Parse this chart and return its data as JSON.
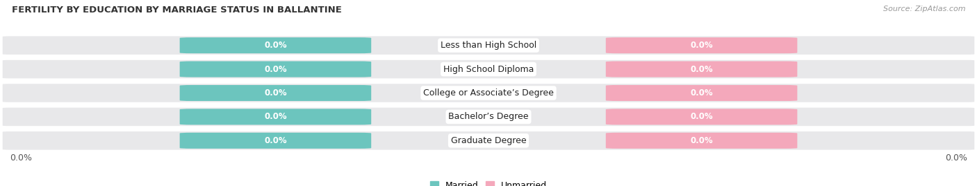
{
  "title": "FERTILITY BY EDUCATION BY MARRIAGE STATUS IN BALLANTINE",
  "source": "Source: ZipAtlas.com",
  "categories": [
    "Less than High School",
    "High School Diploma",
    "College or Associate’s Degree",
    "Bachelor’s Degree",
    "Graduate Degree"
  ],
  "married_values": [
    0.0,
    0.0,
    0.0,
    0.0,
    0.0
  ],
  "unmarried_values": [
    0.0,
    0.0,
    0.0,
    0.0,
    0.0
  ],
  "married_color": "#6cc5be",
  "unmarried_color": "#f4a8bb",
  "bar_bg_color": "#e8e8ea",
  "x_left_label": "0.0%",
  "x_right_label": "0.0%",
  "legend_married": "Married",
  "legend_unmarried": "Unmarried",
  "figsize": [
    14.06,
    2.69
  ],
  "dpi": 100,
  "title_fontsize": 9.5,
  "label_fontsize": 9,
  "tick_fontsize": 9,
  "source_fontsize": 8,
  "category_fontsize": 9,
  "value_fontsize": 8.5
}
